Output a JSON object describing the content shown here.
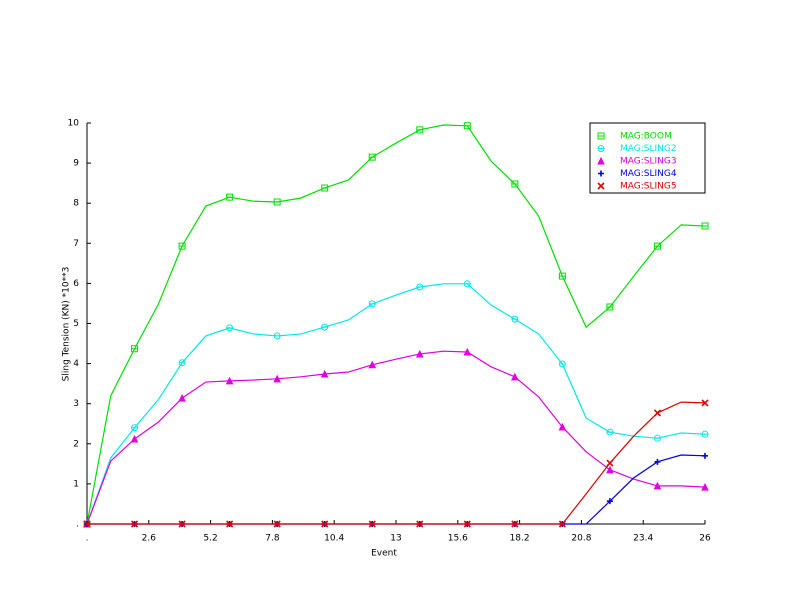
{
  "chart_data": {
    "type": "line",
    "x_label": "Event",
    "y_label": "Sling Tension (KN) *10**3",
    "x": [
      0,
      1,
      2,
      3,
      4,
      5,
      6,
      7,
      8,
      9,
      10,
      11,
      12,
      13,
      14,
      15,
      16,
      17,
      18,
      19,
      20,
      21,
      22,
      23,
      24,
      25,
      26
    ],
    "xlim": [
      0,
      26
    ],
    "xticks": [
      {
        "value": 0,
        "label": "."
      },
      2.6,
      5.2,
      7.8,
      10.4,
      13,
      15.6,
      18.2,
      20.8,
      23.4,
      26
    ],
    "ylim": [
      0,
      10
    ],
    "yticks": [
      {
        "value": 0,
        "label": "."
      },
      1,
      2,
      3,
      4,
      5,
      6,
      7,
      8,
      9,
      10
    ],
    "marker_every": 2,
    "legend_position": "upper right",
    "series": [
      {
        "name": "MAG:BOOM",
        "color": "#00e000",
        "marker": "square",
        "values": [
          0,
          3.2,
          4.37,
          5.48,
          6.93,
          7.93,
          8.15,
          8.05,
          8.03,
          8.13,
          8.38,
          8.58,
          9.15,
          9.5,
          9.83,
          9.95,
          9.93,
          9.05,
          8.48,
          7.68,
          6.18,
          4.91,
          5.41,
          6.18,
          6.93,
          7.46,
          7.43
        ]
      },
      {
        "name": "MAG:SLING2",
        "color": "#00e8e8",
        "marker": "circle",
        "values": [
          0,
          1.65,
          2.4,
          3.1,
          4.02,
          4.69,
          4.89,
          4.74,
          4.69,
          4.74,
          4.91,
          5.09,
          5.49,
          5.71,
          5.91,
          5.99,
          5.99,
          5.46,
          5.11,
          4.74,
          3.99,
          2.64,
          2.29,
          2.19,
          2.14,
          2.27,
          2.24
        ]
      },
      {
        "name": "MAG:SLING3",
        "color": "#e000e0",
        "marker": "triangle",
        "values": [
          0,
          1.57,
          2.12,
          2.54,
          3.14,
          3.54,
          3.57,
          3.59,
          3.62,
          3.67,
          3.74,
          3.79,
          3.97,
          4.11,
          4.24,
          4.31,
          4.29,
          3.92,
          3.67,
          3.17,
          2.42,
          1.8,
          1.35,
          1.12,
          0.95,
          0.95,
          0.92
        ]
      },
      {
        "name": "MAG:SLING4",
        "color": "#0000e0",
        "marker": "plus",
        "values": [
          0,
          0,
          0,
          0,
          0,
          0,
          0,
          0,
          0,
          0,
          0,
          0,
          0,
          0,
          0,
          0,
          0,
          0,
          0,
          0,
          0,
          0,
          0.57,
          1.15,
          1.55,
          1.72,
          1.7
        ]
      },
      {
        "name": "MAG:SLING5",
        "color": "#e00000",
        "marker": "cross",
        "values": [
          0,
          0,
          0,
          0,
          0,
          0,
          0,
          0,
          0,
          0,
          0,
          0,
          0,
          0,
          0,
          0,
          0,
          0,
          0,
          0,
          0,
          0.75,
          1.52,
          2.19,
          2.77,
          3.04,
          3.02
        ]
      }
    ]
  }
}
